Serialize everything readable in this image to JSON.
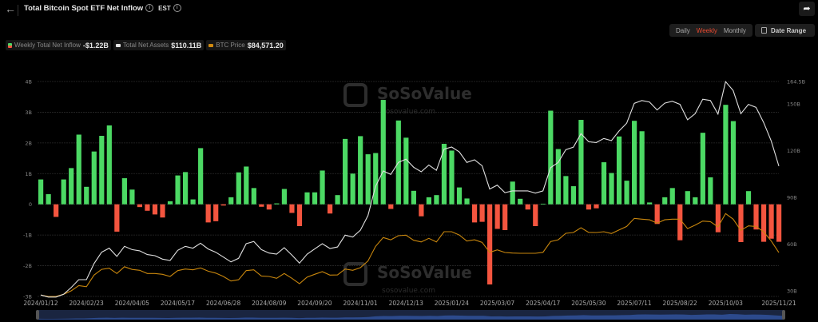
{
  "header": {
    "title": "Total Bitcoin Spot ETF Net Inflow",
    "timezone": "EST",
    "back_icon": "arrow-left-icon",
    "share_icon": "share-icon"
  },
  "controls": {
    "periods": [
      "Daily",
      "Weekly",
      "Monthly"
    ],
    "active_period": "Weekly",
    "date_range_label": "Date Range"
  },
  "legend": [
    {
      "label": "Weekly Total Net Inflow",
      "value": "-$1.22B",
      "color": "#4cd964"
    },
    {
      "label": "Total Net Assets",
      "value": "$110.11B",
      "color": "#e6e6e6"
    },
    {
      "label": "BTC Price",
      "value": "$84,571.20",
      "color": "#d08a10"
    }
  ],
  "watermark": {
    "brand": "SoSoValue",
    "url": "sosovalue.com"
  },
  "chart_data": {
    "type": "bar+line",
    "grid": true,
    "colors": {
      "positive": "#4cd964",
      "negative": "#f4553f",
      "assets": "#e0e0e0",
      "btc": "#c8860d"
    },
    "left_axis": {
      "range": [
        -3,
        4
      ],
      "ticks": [
        4,
        3,
        2,
        1,
        0,
        -1,
        -2,
        -3
      ],
      "tick_labels": [
        "4B",
        "3B",
        "2B",
        "1B",
        "0",
        "-1B",
        "-2B",
        "-3B"
      ]
    },
    "right_axis": {
      "range": [
        26.4,
        164.5
      ],
      "ticks": [
        164.5,
        150,
        120,
        90,
        60,
        30
      ],
      "tick_labels": [
        "164.5B",
        "150B",
        "120B",
        "90B",
        "60B",
        "30B"
      ]
    },
    "btc_axis": {
      "range": [
        41500,
        252400
      ],
      "visible": false
    },
    "x_tick_labels": [
      "2024/01/12",
      "2024/02/23",
      "2024/04/05",
      "2024/05/17",
      "2024/06/28",
      "2024/08/09",
      "2024/09/20",
      "2024/11/01",
      "2024/12/13",
      "2025/01/24",
      "2025/03/07",
      "2025/04/17",
      "2025/05/30",
      "2025/07/11",
      "2025/08/22",
      "2025/10/03",
      "2025/11/21"
    ],
    "dates": [
      "2024/01/12",
      "2024/01/19",
      "2024/01/26",
      "2024/02/02",
      "2024/02/09",
      "2024/02/16",
      "2024/02/23",
      "2024/03/01",
      "2024/03/08",
      "2024/03/15",
      "2024/03/22",
      "2024/03/29",
      "2024/04/05",
      "2024/04/12",
      "2024/04/19",
      "2024/04/26",
      "2024/05/03",
      "2024/05/10",
      "2024/05/17",
      "2024/05/24",
      "2024/05/31",
      "2024/06/07",
      "2024/06/14",
      "2024/06/21",
      "2024/06/28",
      "2024/07/05",
      "2024/07/12",
      "2024/07/19",
      "2024/07/26",
      "2024/08/02",
      "2024/08/09",
      "2024/08/16",
      "2024/08/23",
      "2024/08/30",
      "2024/09/06",
      "2024/09/13",
      "2024/09/20",
      "2024/09/27",
      "2024/10/04",
      "2024/10/11",
      "2024/10/18",
      "2024/10/25",
      "2024/11/01",
      "2024/11/08",
      "2024/11/15",
      "2024/11/22",
      "2024/11/29",
      "2024/12/06",
      "2024/12/13",
      "2024/12/20",
      "2024/12/27",
      "2025/01/03",
      "2025/01/10",
      "2025/01/17",
      "2025/01/24",
      "2025/01/31",
      "2025/02/07",
      "2025/02/14",
      "2025/02/21",
      "2025/02/28",
      "2025/03/07",
      "2025/03/14",
      "2025/03/21",
      "2025/03/28",
      "2025/04/04",
      "2025/04/11",
      "2025/04/17",
      "2025/04/25",
      "2025/05/02",
      "2025/05/09",
      "2025/05/16",
      "2025/05/23",
      "2025/05/30",
      "2025/06/06",
      "2025/06/13",
      "2025/06/20",
      "2025/06/27",
      "2025/07/03",
      "2025/07/11",
      "2025/07/18",
      "2025/07/25",
      "2025/08/01",
      "2025/08/08",
      "2025/08/15",
      "2025/08/22",
      "2025/08/29",
      "2025/09/05",
      "2025/09/12",
      "2025/09/19",
      "2025/09/26",
      "2025/10/03",
      "2025/10/10",
      "2025/10/17",
      "2025/10/24",
      "2025/10/31",
      "2025/11/07",
      "2025/11/14",
      "2025/11/21"
    ],
    "series": [
      {
        "name": "Weekly Total Net Inflow",
        "unit": "B USD",
        "axis": "left",
        "kind": "bar",
        "values": [
          0.81,
          0.33,
          -0.41,
          0.81,
          1.18,
          2.27,
          0.57,
          1.72,
          2.23,
          2.57,
          -0.89,
          0.85,
          0.48,
          -0.09,
          -0.21,
          -0.33,
          -0.43,
          0.1,
          0.94,
          1.05,
          0.16,
          1.83,
          -0.59,
          -0.55,
          -0.04,
          0.23,
          1.04,
          1.23,
          0.53,
          -0.08,
          -0.17,
          0.03,
          0.5,
          -0.28,
          -0.71,
          0.39,
          0.39,
          1.1,
          -0.3,
          0.3,
          2.13,
          1.0,
          2.22,
          1.63,
          1.67,
          3.4,
          -0.15,
          2.73,
          2.17,
          0.44,
          -0.39,
          0.23,
          0.3,
          1.97,
          1.75,
          0.55,
          0.19,
          -0.59,
          -0.57,
          -2.61,
          -0.8,
          -0.84,
          0.74,
          0.18,
          -0.17,
          -0.71,
          0.02,
          3.05,
          1.8,
          0.92,
          0.59,
          2.75,
          -0.17,
          -0.13,
          1.37,
          1.02,
          2.21,
          0.77,
          2.72,
          2.38,
          0.06,
          -0.64,
          0.23,
          0.53,
          -1.17,
          0.43,
          0.23,
          2.33,
          0.88,
          -0.91,
          3.24,
          2.71,
          -1.23,
          0.43,
          -0.82,
          -1.22,
          -1.12,
          -1.22
        ]
      },
      {
        "name": "Total Net Assets",
        "unit": "B USD",
        "axis": "right",
        "kind": "line",
        "values": [
          27.3,
          26.0,
          26.0,
          27.8,
          32.1,
          37.2,
          37.2,
          47.5,
          54.8,
          57.4,
          52.1,
          58.6,
          56.5,
          55.7,
          53.3,
          52.6,
          50.4,
          49.5,
          56.0,
          58.6,
          57.4,
          60.6,
          56.9,
          54.8,
          51.7,
          48.6,
          50.9,
          60.3,
          61.7,
          56.5,
          54.3,
          53.6,
          57.7,
          53.0,
          47.8,
          53.5,
          56.9,
          60.3,
          57.2,
          58.2,
          65.8,
          64.6,
          68.9,
          78.3,
          97.1,
          107.0,
          104.8,
          112.5,
          114.6,
          109.4,
          106.5,
          110.8,
          107.4,
          121.0,
          122.4,
          119.3,
          112.5,
          114.2,
          110.4,
          95.4,
          97.9,
          93.1,
          94.2,
          94.2,
          94.2,
          92.8,
          94.2,
          109.1,
          112.5,
          120.7,
          122.3,
          131.0,
          125.8,
          125.3,
          127.9,
          126.5,
          132.7,
          137.7,
          150.5,
          152.3,
          151.3,
          146.2,
          150.6,
          151.8,
          149.8,
          139.9,
          143.8,
          153.1,
          152.3,
          143.6,
          164.4,
          158.7,
          143.8,
          149.8,
          147.9,
          138.2,
          126.2,
          110.11
        ]
      },
      {
        "name": "BTC Price",
        "unit": "USD",
        "axis": "btc",
        "kind": "line",
        "values": [
          42800,
          41500,
          41500,
          43600,
          47000,
          52200,
          51100,
          62400,
          68100,
          69200,
          64000,
          70700,
          68000,
          67100,
          64000,
          64000,
          63200,
          61100,
          66800,
          68400,
          67600,
          69500,
          66300,
          64400,
          61100,
          56600,
          57900,
          66800,
          67600,
          61600,
          61100,
          59300,
          64000,
          59300,
          54000,
          60500,
          63200,
          65800,
          62400,
          62600,
          68400,
          67100,
          69700,
          76200,
          90600,
          99300,
          97100,
          101100,
          101600,
          96600,
          95000,
          98500,
          95000,
          105000,
          105000,
          101800,
          95800,
          97100,
          94600,
          84800,
          87200,
          84600,
          84100,
          83800,
          83800,
          83800,
          84800,
          95300,
          97100,
          103400,
          104200,
          108900,
          104400,
          104200,
          105000,
          103200,
          106800,
          110200,
          118100,
          117300,
          116700,
          113400,
          116700,
          117300,
          117300,
          108100,
          111500,
          115400,
          114900,
          109700,
          122800,
          117300,
          106300,
          110700,
          110200,
          105000,
          95800,
          84571.2
        ]
      }
    ]
  }
}
